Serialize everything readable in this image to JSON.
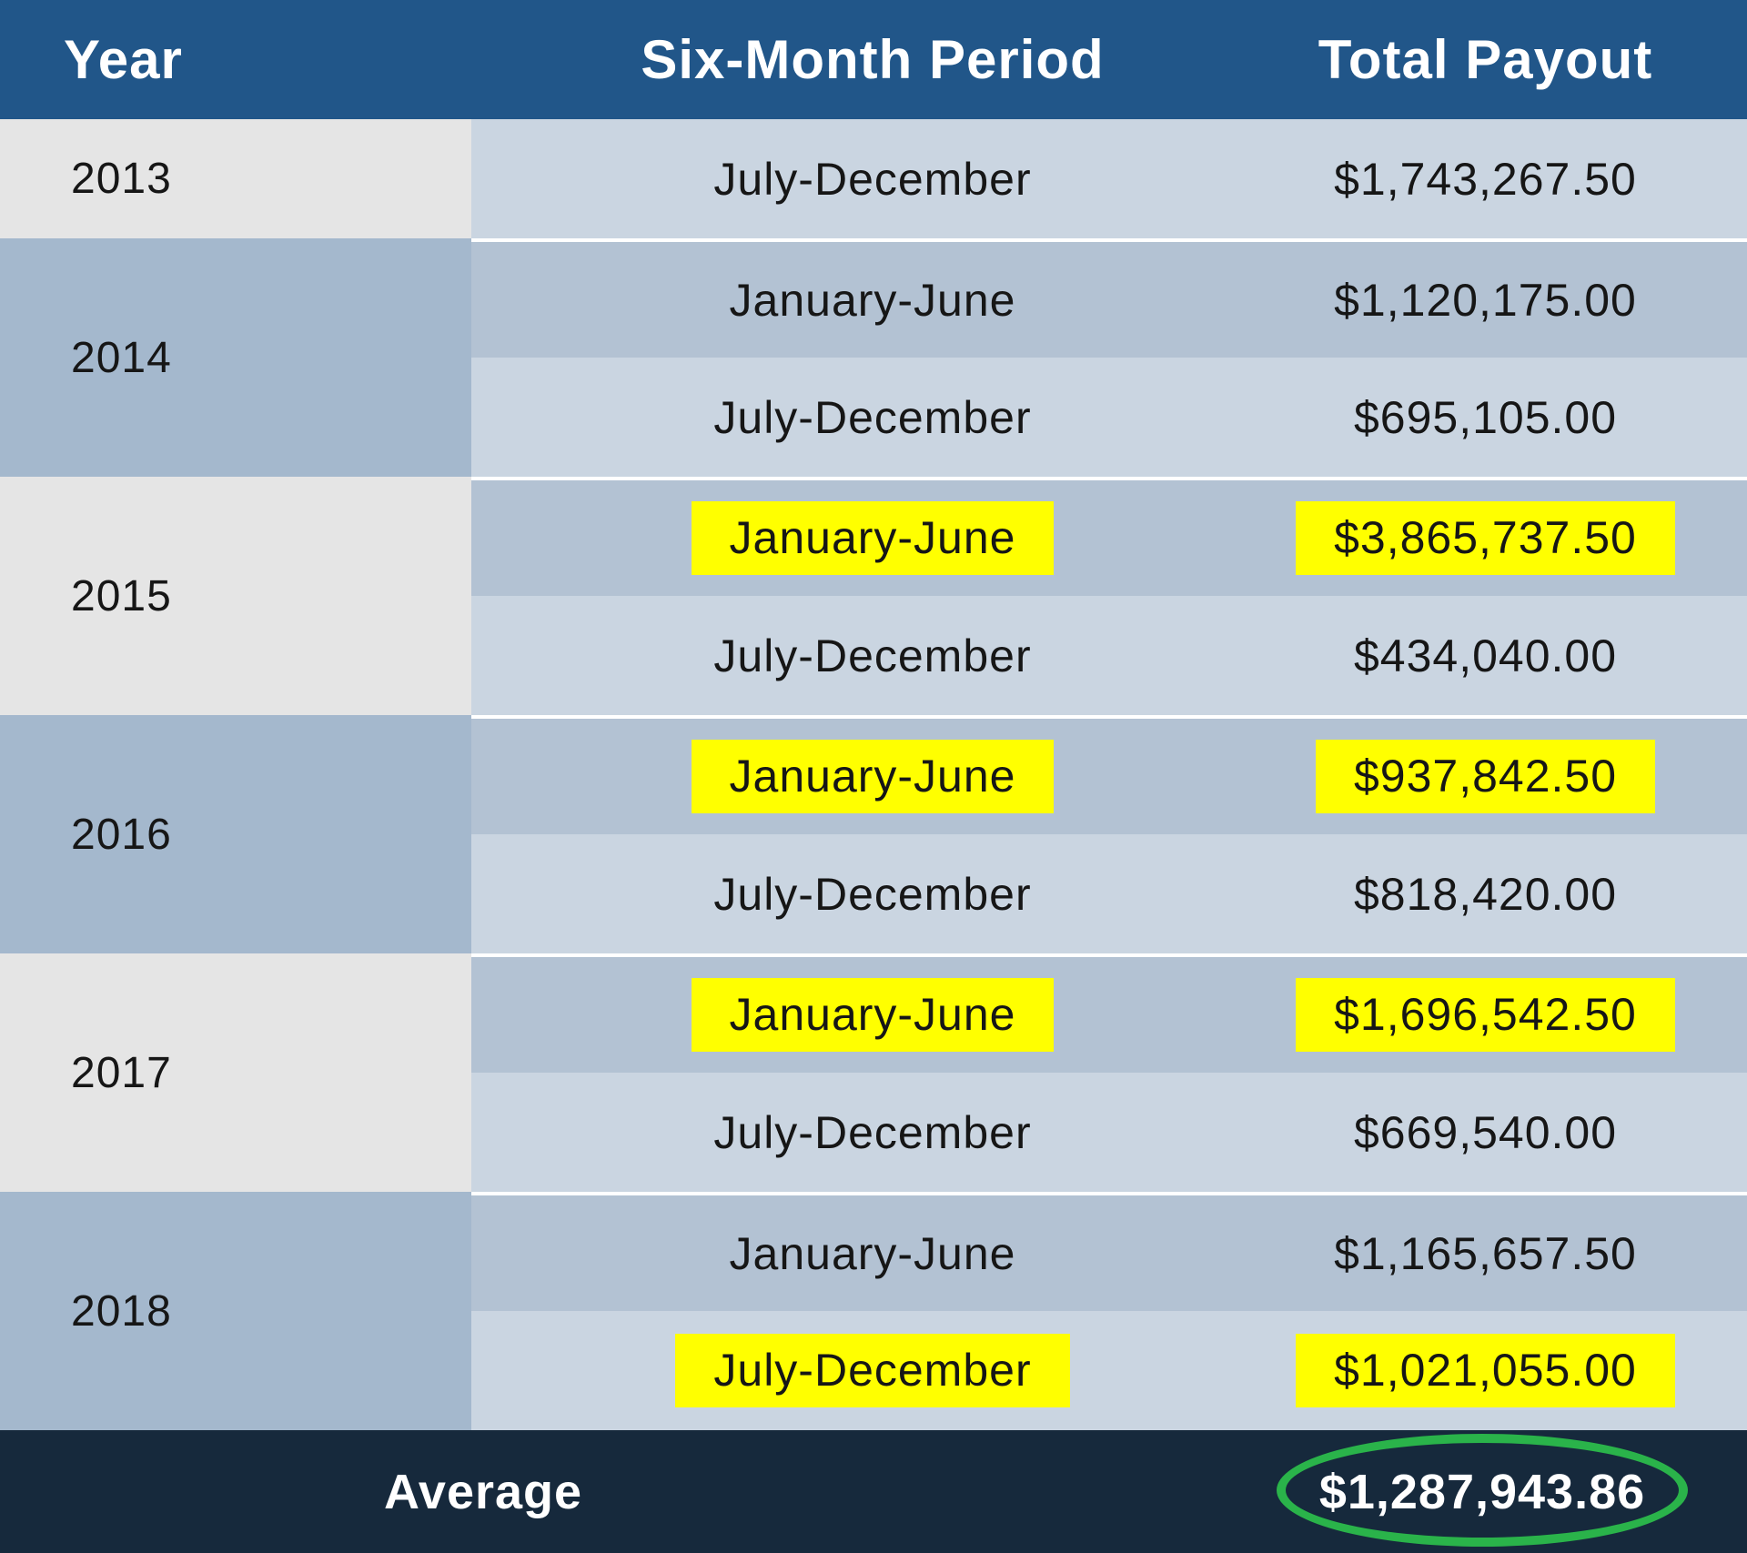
{
  "table": {
    "header": {
      "year": "Year",
      "period": "Six-Month Period",
      "payout": "Total Payout"
    },
    "groups": [
      {
        "year": "2013",
        "shade": "gray",
        "rows": [
          {
            "period": "July-December",
            "payout": "$1,743,267.50",
            "highlight": false
          }
        ]
      },
      {
        "year": "2014",
        "shade": "blue",
        "rows": [
          {
            "period": "January-June",
            "payout": "$1,120,175.00",
            "highlight": false
          },
          {
            "period": "July-December",
            "payout": "$695,105.00",
            "highlight": false
          }
        ]
      },
      {
        "year": "2015",
        "shade": "gray",
        "rows": [
          {
            "period": "January-June",
            "payout": "$3,865,737.50",
            "highlight": true
          },
          {
            "period": "July-December",
            "payout": "$434,040.00",
            "highlight": false
          }
        ]
      },
      {
        "year": "2016",
        "shade": "blue",
        "rows": [
          {
            "period": "January-June",
            "payout": "$937,842.50",
            "highlight": true
          },
          {
            "period": "July-December",
            "payout": "$818,420.00",
            "highlight": false
          }
        ]
      },
      {
        "year": "2017",
        "shade": "gray",
        "rows": [
          {
            "period": "January-June",
            "payout": "$1,696,542.50",
            "highlight": true
          },
          {
            "period": "July-December",
            "payout": "$669,540.00",
            "highlight": false
          }
        ]
      },
      {
        "year": "2018",
        "shade": "blue",
        "rows": [
          {
            "period": "January-June",
            "payout": "$1,165,657.50",
            "highlight": false
          },
          {
            "period": "July-December",
            "payout": "$1,021,055.00",
            "highlight": true
          }
        ]
      }
    ],
    "footer": {
      "label": "Average",
      "value": "$1,287,943.86"
    }
  },
  "colors": {
    "header_bg": "#215689",
    "footer_bg": "#16293c",
    "year_gray": "#e5e5e5",
    "year_blue": "#a4b8cd",
    "row_light": "#cad5e1",
    "row_dark": "#b3c2d3",
    "highlight_yellow": "#ffff00",
    "circle_green": "#2ab34a"
  },
  "chart_data": {
    "type": "table",
    "title": "",
    "columns": [
      "Year",
      "Six-Month Period",
      "Total Payout"
    ],
    "rows": [
      [
        "2013",
        "July-December",
        1743267.5
      ],
      [
        "2014",
        "January-June",
        1120175.0
      ],
      [
        "2014",
        "July-December",
        695105.0
      ],
      [
        "2015",
        "January-June",
        3865737.5
      ],
      [
        "2015",
        "July-December",
        434040.0
      ],
      [
        "2016",
        "January-June",
        937842.5
      ],
      [
        "2016",
        "July-December",
        818420.0
      ],
      [
        "2017",
        "January-June",
        1696542.5
      ],
      [
        "2017",
        "July-December",
        669540.0
      ],
      [
        "2018",
        "January-June",
        1165657.5
      ],
      [
        "2018",
        "July-December",
        1021055.0
      ]
    ],
    "highlighted_row_indices": [
      3,
      5,
      7,
      10
    ],
    "average": 1287943.86,
    "annotations": [
      "average payout value circled with green ellipse",
      "four cells highlighted in yellow"
    ]
  }
}
